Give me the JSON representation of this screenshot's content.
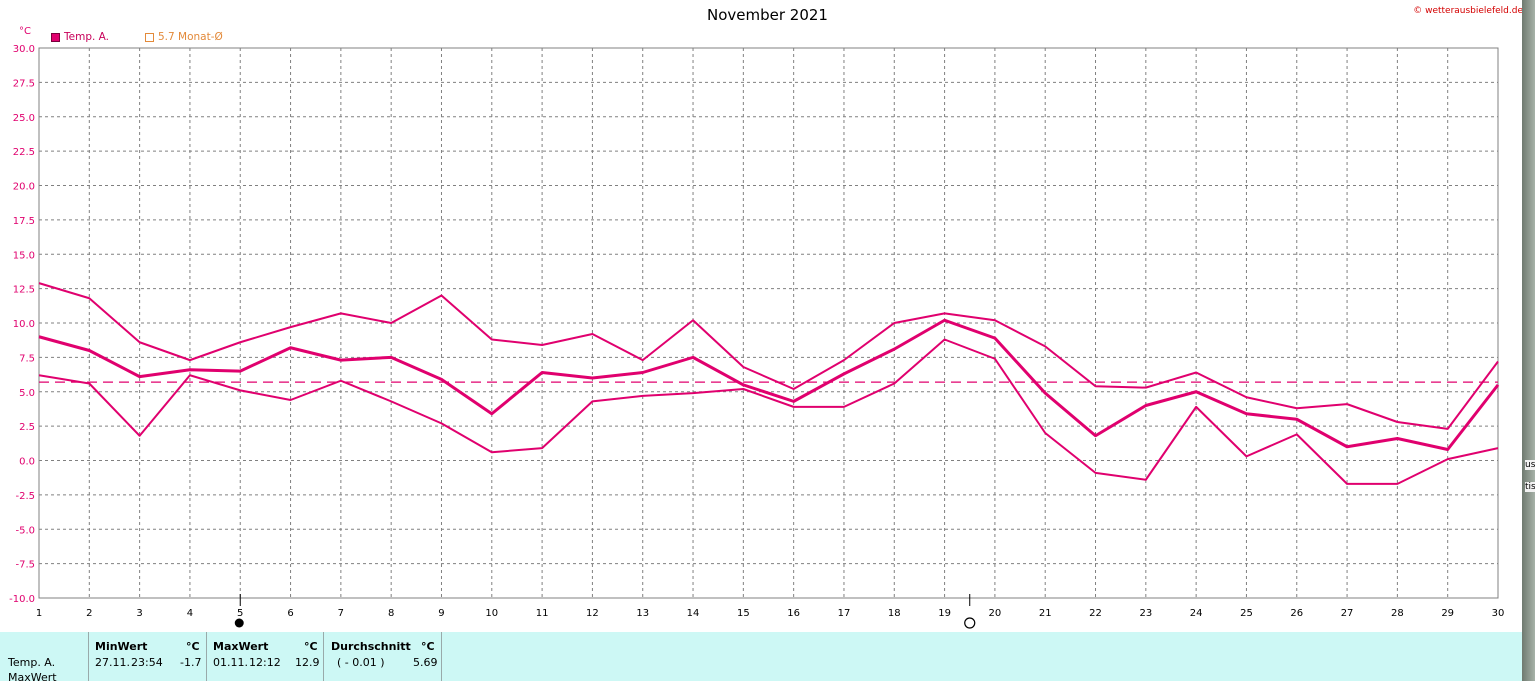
{
  "title": "November 2021",
  "credit": "© wetterausbielefeld.de",
  "unit": "°C",
  "legend": {
    "series_label": "Temp. A.",
    "avg_label": "5.7 Monat-Ø"
  },
  "colors": {
    "series": "#e0006e",
    "average_line": "#e0006e",
    "grid": "#808080",
    "stats_bg": "#cdf8f5"
  },
  "chart_data": {
    "type": "line",
    "title": "November 2021",
    "ylabel": "°C",
    "xlabel": "",
    "x": [
      1,
      2,
      3,
      4,
      5,
      6,
      7,
      8,
      9,
      10,
      11,
      12,
      13,
      14,
      15,
      16,
      17,
      18,
      19,
      20,
      21,
      22,
      23,
      24,
      25,
      26,
      27,
      28,
      29,
      30
    ],
    "x_ticks": [
      "1",
      "2",
      "3",
      "4",
      "5",
      "6",
      "7",
      "8",
      "9",
      "10",
      "11",
      "12",
      "13",
      "14",
      "15",
      "16",
      "17",
      "18",
      "19",
      "20",
      "21",
      "22",
      "23",
      "24",
      "25",
      "26",
      "27",
      "28",
      "29",
      "30"
    ],
    "y_ticks": [
      "30.0",
      "27.5",
      "25.0",
      "22.5",
      "20.0",
      "17.5",
      "15.0",
      "12.5",
      "10.0",
      "7.5",
      "5.0",
      "2.5",
      "0.0",
      "-2.5",
      "-5.0",
      "-7.5",
      "-10.0"
    ],
    "ylim": [
      -10,
      30
    ],
    "grid": true,
    "legend_position": "top-left",
    "series": [
      {
        "name": "Temp. A.",
        "role": "max",
        "values": [
          12.9,
          11.8,
          8.6,
          7.3,
          8.6,
          9.7,
          10.7,
          10.0,
          12.0,
          8.8,
          8.4,
          9.2,
          7.3,
          10.2,
          6.8,
          5.2,
          7.3,
          10.0,
          10.7,
          10.2,
          8.3,
          5.4,
          5.3,
          6.4,
          4.6,
          3.8,
          4.1,
          2.8,
          2.3,
          7.2
        ]
      },
      {
        "name": "Temp. A.",
        "role": "mean",
        "values": [
          9.0,
          8.0,
          6.1,
          6.6,
          6.5,
          8.2,
          7.3,
          7.5,
          5.9,
          3.4,
          6.4,
          6.0,
          6.4,
          7.5,
          5.5,
          4.3,
          6.3,
          8.1,
          10.2,
          8.9,
          4.9,
          1.8,
          4.0,
          5.0,
          3.4,
          3.0,
          1.0,
          1.6,
          0.8,
          5.5
        ]
      },
      {
        "name": "Temp. A.",
        "role": "min",
        "values": [
          6.2,
          5.6,
          1.8,
          6.2,
          5.1,
          4.4,
          5.8,
          4.3,
          2.7,
          0.6,
          0.9,
          4.3,
          4.7,
          4.9,
          5.2,
          3.9,
          3.9,
          5.6,
          8.8,
          7.4,
          2.0,
          -0.9,
          -1.4,
          3.9,
          0.3,
          1.9,
          -1.7,
          -1.7,
          0.1,
          0.9
        ]
      }
    ],
    "average": 5.7,
    "moon_phases": [
      {
        "day": 5,
        "phase": "new-moon"
      },
      {
        "day": 19.5,
        "phase": "full-moon"
      }
    ]
  },
  "stats": {
    "row_label": "Temp. A.",
    "row_label_2": "MaxWert",
    "min": {
      "header": "MinWert",
      "unit": "°C",
      "date": "27.11.",
      "time": "23:54",
      "value": "-1.7"
    },
    "max": {
      "header": "MaxWert",
      "unit": "°C",
      "date": "01.11.",
      "time": "12:12",
      "value": "12.9"
    },
    "avg": {
      "header": "Durchschnitt",
      "unit": "°C",
      "delta": "( - 0.01 )",
      "value": "5.69"
    }
  },
  "right_edge": {
    "frag1": "us",
    "frag2": "tis"
  }
}
